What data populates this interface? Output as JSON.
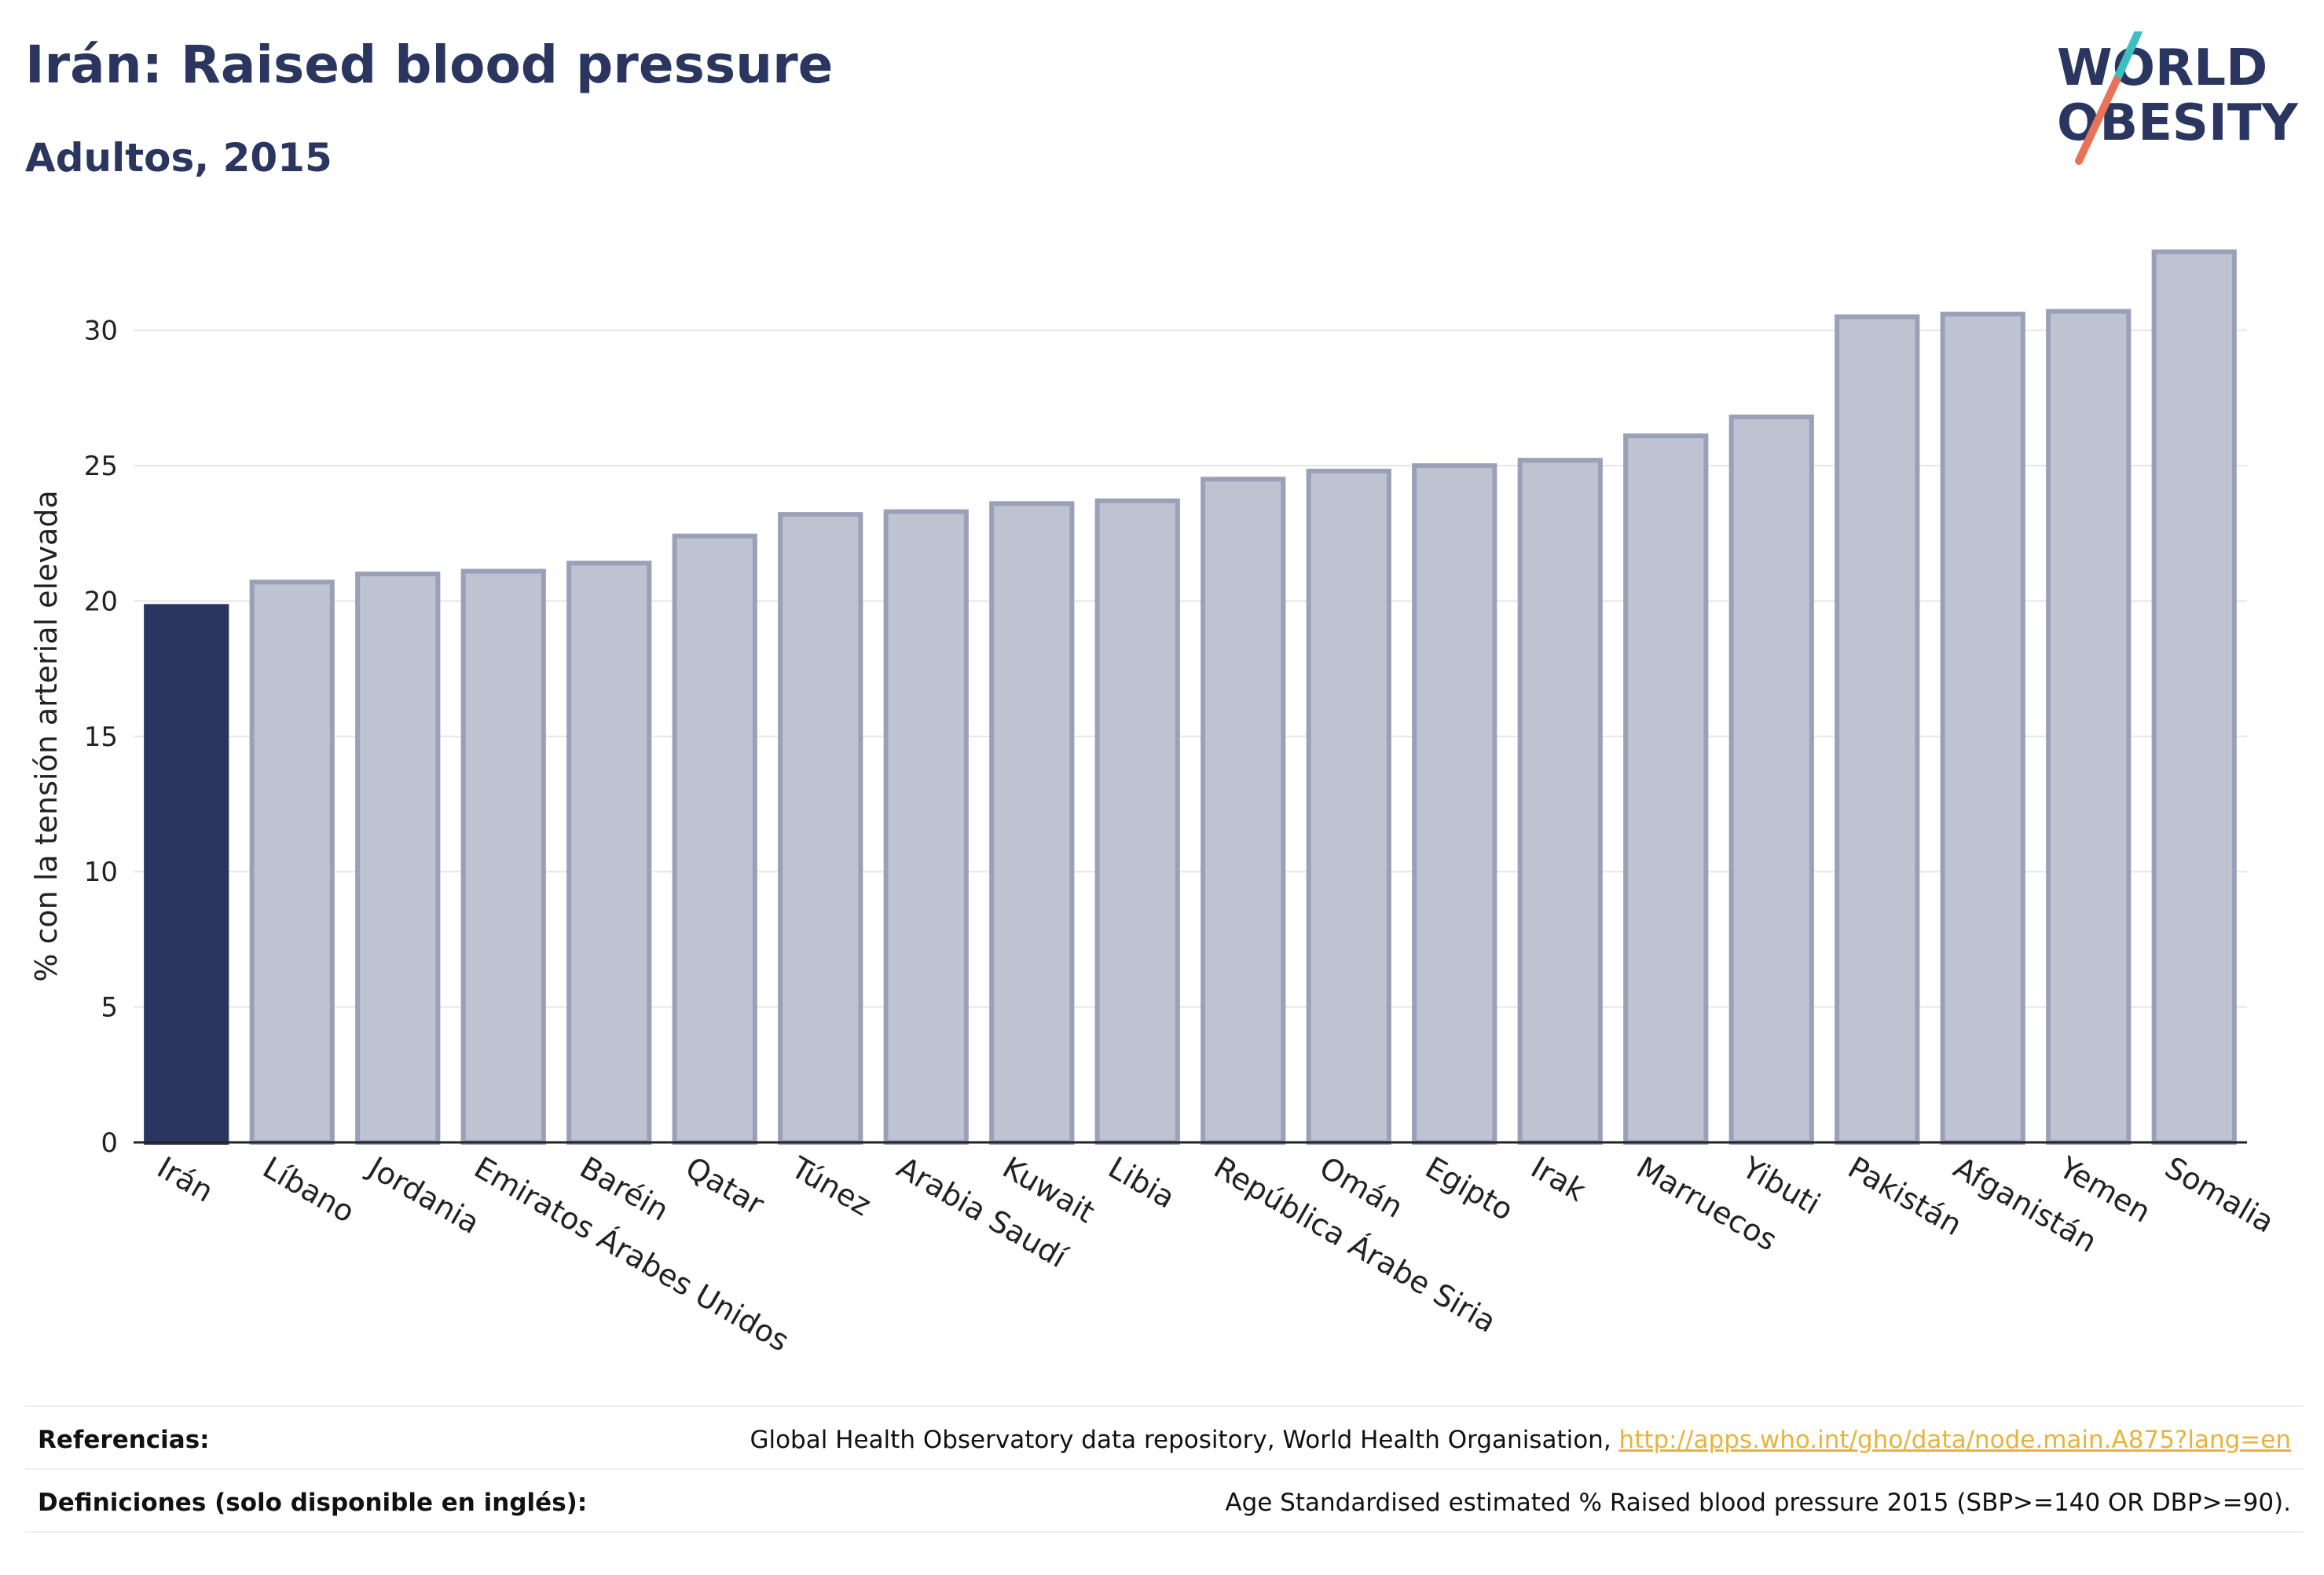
{
  "header": {
    "title": "Irán: Raised blood pressure",
    "subtitle": "Adultos, 2015"
  },
  "logo": {
    "line1": "WORLD",
    "line2": "OBESITY",
    "accent_top": "#3bbfbf",
    "accent_bottom": "#e8735a",
    "text_color": "#2b3660"
  },
  "chart_data": {
    "type": "bar",
    "ylabel": "% con la tensión arterial elevada",
    "ylim": [
      0,
      33.5
    ],
    "yticks": [
      0,
      5,
      10,
      15,
      20,
      25,
      30
    ],
    "grid": true,
    "highlight_color": "#2b3660",
    "bar_color": "#bfc2d1",
    "bar_border_color": "#9aa0b8",
    "categories": [
      "Irán",
      "Líbano",
      "Jordania",
      "Emiratos Árabes Unidos",
      "Baréin",
      "Qatar",
      "Túnez",
      "Arabia Saudí",
      "Kuwait",
      "Libia",
      "República Árabe Siria",
      "Omán",
      "Egipto",
      "Irak",
      "Marruecos",
      "Yibuti",
      "Pakistán",
      "Afganistán",
      "Yemen",
      "Somalia"
    ],
    "values": [
      19.8,
      20.7,
      21.0,
      21.1,
      21.4,
      22.4,
      23.2,
      23.3,
      23.6,
      23.7,
      24.5,
      24.8,
      25.0,
      25.2,
      26.1,
      26.8,
      30.5,
      30.6,
      30.7,
      32.9
    ],
    "highlight": "Irán"
  },
  "footer": {
    "references_label": "Referencias:",
    "references_text": "Global Health Observatory data repository, World Health Organisation, ",
    "references_link": "http://apps.who.int/gho/data/node.main.A875?lang=en",
    "definitions_label": "Definiciones (solo disponible en inglés):",
    "definitions_text": "Age Standardised estimated % Raised blood pressure 2015 (SBP>=140 OR DBP>=90)."
  }
}
